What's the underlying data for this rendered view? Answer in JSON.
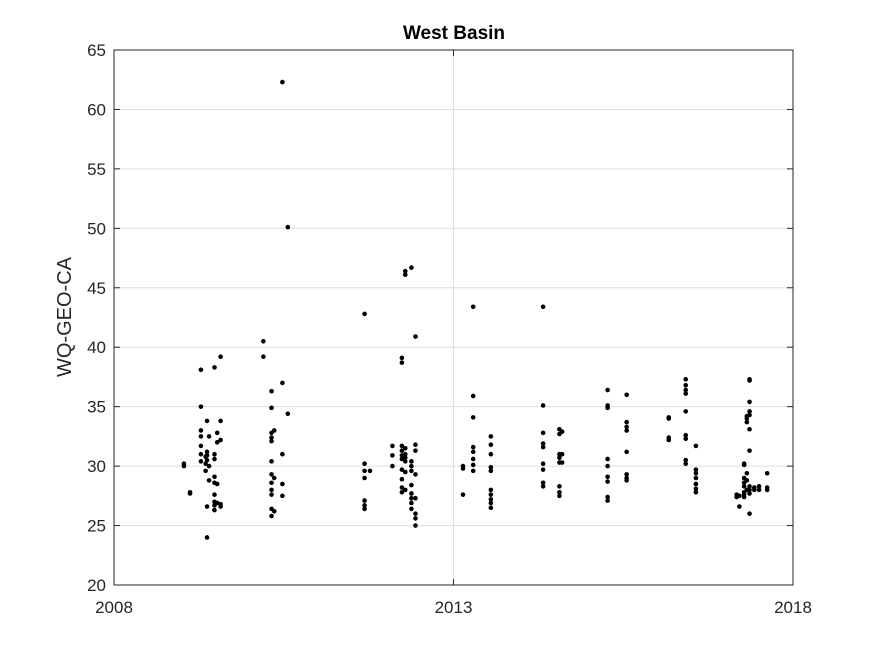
{
  "chart_data": {
    "type": "scatter",
    "title": "West Basin",
    "xlabel": "",
    "ylabel": "WQ-GEO-CA",
    "xlim": [
      2008,
      2018
    ],
    "ylim": [
      20,
      65
    ],
    "xticks": [
      2008,
      2013,
      2018
    ],
    "xtick_labels": [
      "2008",
      "2013",
      "2018"
    ],
    "yticks": [
      20,
      25,
      30,
      35,
      40,
      45,
      50,
      55,
      60,
      65
    ],
    "ytick_labels": [
      "20",
      "25",
      "30",
      "35",
      "40",
      "45",
      "50",
      "55",
      "60",
      "65"
    ],
    "grid": "on",
    "legend": "none",
    "marker_color": "#000000",
    "series": [
      {
        "points": [
          [
            2009.03,
            30.2
          ],
          [
            2009.03,
            30.0
          ],
          [
            2009.12,
            27.8
          ],
          [
            2009.12,
            27.7
          ],
          [
            2009.28,
            38.1
          ],
          [
            2009.28,
            35.0
          ],
          [
            2009.28,
            33.0
          ],
          [
            2009.28,
            32.5
          ],
          [
            2009.28,
            31.7
          ],
          [
            2009.28,
            31.0
          ],
          [
            2009.28,
            30.4
          ],
          [
            2009.35,
            30.8
          ],
          [
            2009.35,
            30.2
          ],
          [
            2009.35,
            29.6
          ],
          [
            2009.37,
            33.8
          ],
          [
            2009.37,
            31.2
          ],
          [
            2009.37,
            30.9
          ],
          [
            2009.37,
            30.5
          ],
          [
            2009.37,
            26.6
          ],
          [
            2009.37,
            24.0
          ],
          [
            2009.4,
            32.5
          ],
          [
            2009.4,
            30.0
          ],
          [
            2009.4,
            28.8
          ],
          [
            2009.48,
            38.3
          ],
          [
            2009.48,
            31.0
          ],
          [
            2009.48,
            30.6
          ],
          [
            2009.48,
            29.1
          ],
          [
            2009.48,
            28.6
          ],
          [
            2009.48,
            27.6
          ],
          [
            2009.48,
            27.0
          ],
          [
            2009.48,
            26.7
          ],
          [
            2009.48,
            26.3
          ],
          [
            2009.52,
            32.0
          ],
          [
            2009.52,
            32.8
          ],
          [
            2009.52,
            28.5
          ],
          [
            2009.52,
            26.9
          ],
          [
            2009.57,
            39.2
          ],
          [
            2009.57,
            33.8
          ],
          [
            2009.57,
            32.2
          ],
          [
            2009.57,
            26.8
          ],
          [
            2009.57,
            26.6
          ],
          [
            2010.2,
            40.5
          ],
          [
            2010.2,
            39.2
          ],
          [
            2010.32,
            36.3
          ],
          [
            2010.32,
            34.9
          ],
          [
            2010.32,
            32.8
          ],
          [
            2010.32,
            32.4
          ],
          [
            2010.32,
            32.1
          ],
          [
            2010.32,
            30.4
          ],
          [
            2010.32,
            29.3
          ],
          [
            2010.32,
            28.6
          ],
          [
            2010.32,
            28.0
          ],
          [
            2010.32,
            27.6
          ],
          [
            2010.32,
            26.4
          ],
          [
            2010.32,
            25.8
          ],
          [
            2010.36,
            33.0
          ],
          [
            2010.36,
            29.0
          ],
          [
            2010.36,
            26.2
          ],
          [
            2010.48,
            62.3
          ],
          [
            2010.48,
            37.0
          ],
          [
            2010.48,
            31.0
          ],
          [
            2010.48,
            28.5
          ],
          [
            2010.48,
            27.5
          ],
          [
            2010.56,
            50.1
          ],
          [
            2010.56,
            34.4
          ],
          [
            2011.69,
            42.8
          ],
          [
            2011.69,
            30.2
          ],
          [
            2011.69,
            29.6
          ],
          [
            2011.69,
            29.0
          ],
          [
            2011.69,
            27.1
          ],
          [
            2011.69,
            26.7
          ],
          [
            2011.69,
            26.4
          ],
          [
            2011.77,
            29.6
          ],
          [
            2012.1,
            31.7
          ],
          [
            2012.1,
            30.9
          ],
          [
            2012.1,
            30.0
          ],
          [
            2012.24,
            39.1
          ],
          [
            2012.24,
            38.7
          ],
          [
            2012.24,
            31.7
          ],
          [
            2012.24,
            31.3
          ],
          [
            2012.24,
            30.9
          ],
          [
            2012.24,
            30.6
          ],
          [
            2012.24,
            29.7
          ],
          [
            2012.24,
            28.9
          ],
          [
            2012.24,
            28.2
          ],
          [
            2012.24,
            27.8
          ],
          [
            2012.29,
            46.4
          ],
          [
            2012.29,
            46.1
          ],
          [
            2012.29,
            31.5
          ],
          [
            2012.29,
            31.0
          ],
          [
            2012.29,
            30.7
          ],
          [
            2012.29,
            30.4
          ],
          [
            2012.29,
            29.5
          ],
          [
            2012.29,
            28.0
          ],
          [
            2012.38,
            46.7
          ],
          [
            2012.38,
            30.4
          ],
          [
            2012.38,
            30.0
          ],
          [
            2012.38,
            29.6
          ],
          [
            2012.38,
            28.4
          ],
          [
            2012.38,
            27.7
          ],
          [
            2012.38,
            27.3
          ],
          [
            2012.38,
            26.9
          ],
          [
            2012.38,
            26.4
          ],
          [
            2012.44,
            40.9
          ],
          [
            2012.44,
            31.8
          ],
          [
            2012.44,
            31.3
          ],
          [
            2012.44,
            29.3
          ],
          [
            2012.44,
            27.3
          ],
          [
            2012.44,
            26.0
          ],
          [
            2012.44,
            25.6
          ],
          [
            2012.44,
            25.0
          ],
          [
            2013.14,
            30.0
          ],
          [
            2013.14,
            29.8
          ],
          [
            2013.14,
            27.6
          ],
          [
            2013.29,
            43.4
          ],
          [
            2013.29,
            35.9
          ],
          [
            2013.29,
            34.1
          ],
          [
            2013.29,
            31.6
          ],
          [
            2013.29,
            31.2
          ],
          [
            2013.29,
            30.6
          ],
          [
            2013.29,
            30.1
          ],
          [
            2013.29,
            29.6
          ],
          [
            2013.55,
            32.5
          ],
          [
            2013.55,
            31.8
          ],
          [
            2013.55,
            31.0
          ],
          [
            2013.55,
            29.9
          ],
          [
            2013.55,
            29.6
          ],
          [
            2013.55,
            28.0
          ],
          [
            2013.55,
            27.6
          ],
          [
            2013.55,
            27.2
          ],
          [
            2013.55,
            26.9
          ],
          [
            2013.55,
            26.5
          ],
          [
            2014.32,
            43.4
          ],
          [
            2014.32,
            35.1
          ],
          [
            2014.32,
            32.8
          ],
          [
            2014.32,
            31.9
          ],
          [
            2014.32,
            31.6
          ],
          [
            2014.32,
            30.2
          ],
          [
            2014.32,
            29.7
          ],
          [
            2014.32,
            28.6
          ],
          [
            2014.32,
            28.3
          ],
          [
            2014.56,
            33.1
          ],
          [
            2014.56,
            32.7
          ],
          [
            2014.56,
            31.0
          ],
          [
            2014.56,
            30.7
          ],
          [
            2014.56,
            30.3
          ],
          [
            2014.56,
            28.3
          ],
          [
            2014.56,
            27.8
          ],
          [
            2014.56,
            27.5
          ],
          [
            2014.6,
            32.9
          ],
          [
            2014.6,
            31.0
          ],
          [
            2014.6,
            30.3
          ],
          [
            2015.27,
            36.4
          ],
          [
            2015.27,
            35.1
          ],
          [
            2015.27,
            34.9
          ],
          [
            2015.27,
            30.6
          ],
          [
            2015.27,
            30.0
          ],
          [
            2015.27,
            29.1
          ],
          [
            2015.27,
            28.7
          ],
          [
            2015.27,
            27.4
          ],
          [
            2015.27,
            27.1
          ],
          [
            2015.55,
            36.0
          ],
          [
            2015.55,
            33.7
          ],
          [
            2015.55,
            33.3
          ],
          [
            2015.55,
            33.0
          ],
          [
            2015.55,
            31.2
          ],
          [
            2015.55,
            29.3
          ],
          [
            2015.55,
            29.0
          ],
          [
            2015.55,
            28.8
          ],
          [
            2016.17,
            34.1
          ],
          [
            2016.17,
            34.0
          ],
          [
            2016.17,
            32.4
          ],
          [
            2016.17,
            32.2
          ],
          [
            2016.42,
            37.3
          ],
          [
            2016.42,
            36.8
          ],
          [
            2016.42,
            36.4
          ],
          [
            2016.42,
            36.1
          ],
          [
            2016.42,
            34.6
          ],
          [
            2016.42,
            32.6
          ],
          [
            2016.42,
            32.3
          ],
          [
            2016.42,
            30.5
          ],
          [
            2016.42,
            30.2
          ],
          [
            2016.57,
            31.7
          ],
          [
            2016.57,
            29.7
          ],
          [
            2016.57,
            29.4
          ],
          [
            2016.57,
            29.0
          ],
          [
            2016.57,
            28.5
          ],
          [
            2016.57,
            28.1
          ],
          [
            2016.57,
            27.8
          ],
          [
            2017.17,
            27.6
          ],
          [
            2017.17,
            27.4
          ],
          [
            2017.21,
            27.5
          ],
          [
            2017.21,
            26.6
          ],
          [
            2017.28,
            30.2
          ],
          [
            2017.28,
            30.1
          ],
          [
            2017.28,
            29.0
          ],
          [
            2017.28,
            28.6
          ],
          [
            2017.28,
            28.3
          ],
          [
            2017.28,
            27.8
          ],
          [
            2017.28,
            27.6
          ],
          [
            2017.28,
            27.4
          ],
          [
            2017.32,
            34.2
          ],
          [
            2017.32,
            34.0
          ],
          [
            2017.32,
            33.7
          ],
          [
            2017.32,
            29.4
          ],
          [
            2017.32,
            28.8
          ],
          [
            2017.32,
            28.0
          ],
          [
            2017.36,
            37.3
          ],
          [
            2017.36,
            37.2
          ],
          [
            2017.36,
            35.4
          ],
          [
            2017.36,
            34.6
          ],
          [
            2017.36,
            34.3
          ],
          [
            2017.36,
            33.1
          ],
          [
            2017.36,
            31.3
          ],
          [
            2017.36,
            28.3
          ],
          [
            2017.36,
            28.0
          ],
          [
            2017.36,
            27.7
          ],
          [
            2017.36,
            26.0
          ],
          [
            2017.43,
            28.2
          ],
          [
            2017.43,
            28.0
          ],
          [
            2017.5,
            28.3
          ],
          [
            2017.5,
            28.0
          ],
          [
            2017.62,
            29.4
          ],
          [
            2017.62,
            28.2
          ],
          [
            2017.62,
            28.0
          ]
        ]
      }
    ]
  }
}
